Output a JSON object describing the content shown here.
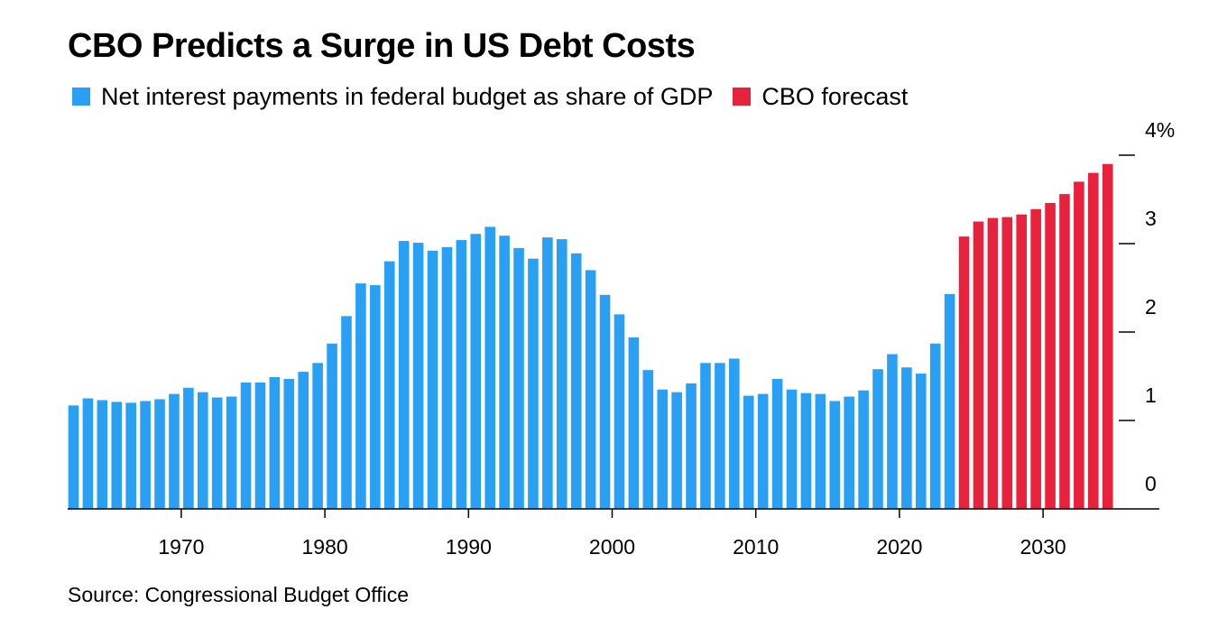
{
  "title": "CBO Predicts a Surge in US Debt Costs",
  "source": "Source: Congressional Budget Office",
  "colors": {
    "historical": "#2aa0f5",
    "forecast": "#e8213d",
    "axis": "#000000"
  },
  "chart_data": {
    "type": "bar",
    "title": "CBO Predicts a Surge in US Debt Costs",
    "legend": {
      "placement": "top-left"
    },
    "grid": false,
    "ylim": [
      0,
      4
    ],
    "xlim": [
      1962,
      2034
    ],
    "x_ticks": [
      1970,
      1980,
      1990,
      2000,
      2010,
      2020,
      2030
    ],
    "x_tick_labels": [
      "1970",
      "1980",
      "1990",
      "2000",
      "2010",
      "2020",
      "2030"
    ],
    "y_ticks": [
      0,
      1,
      2,
      3,
      4
    ],
    "y_tick_labels": [
      "0",
      "1",
      "2",
      "3",
      "4%"
    ],
    "series": [
      {
        "name": "Net interest payments in federal budget as share of GDP",
        "color": "#2aa0f5",
        "x": [
          1962,
          1963,
          1964,
          1965,
          1966,
          1967,
          1968,
          1969,
          1970,
          1971,
          1972,
          1973,
          1974,
          1975,
          1976,
          1977,
          1978,
          1979,
          1980,
          1981,
          1982,
          1983,
          1984,
          1985,
          1986,
          1987,
          1988,
          1989,
          1990,
          1991,
          1992,
          1993,
          1994,
          1995,
          1996,
          1997,
          1998,
          1999,
          2000,
          2001,
          2002,
          2003,
          2004,
          2005,
          2006,
          2007,
          2008,
          2009,
          2010,
          2011,
          2012,
          2013,
          2014,
          2015,
          2016,
          2017,
          2018,
          2019,
          2020,
          2021,
          2022,
          2023
        ],
        "values": [
          1.17,
          1.25,
          1.23,
          1.21,
          1.2,
          1.22,
          1.24,
          1.3,
          1.37,
          1.32,
          1.26,
          1.27,
          1.43,
          1.43,
          1.49,
          1.47,
          1.55,
          1.65,
          1.87,
          2.18,
          2.55,
          2.53,
          2.8,
          3.03,
          3.01,
          2.92,
          2.96,
          3.04,
          3.11,
          3.19,
          3.09,
          2.95,
          2.83,
          3.07,
          3.05,
          2.89,
          2.7,
          2.42,
          2.2,
          1.94,
          1.57,
          1.35,
          1.32,
          1.42,
          1.65,
          1.65,
          1.7,
          1.28,
          1.3,
          1.47,
          1.35,
          1.31,
          1.3,
          1.22,
          1.27,
          1.34,
          1.58,
          1.75,
          1.6,
          1.53,
          1.87,
          2.43
        ]
      },
      {
        "name": "CBO forecast",
        "color": "#e8213d",
        "x": [
          2024,
          2025,
          2026,
          2027,
          2028,
          2029,
          2030,
          2031,
          2032,
          2033,
          2034
        ],
        "values": [
          3.08,
          3.25,
          3.29,
          3.3,
          3.33,
          3.39,
          3.46,
          3.56,
          3.7,
          3.8,
          3.9
        ]
      }
    ]
  }
}
